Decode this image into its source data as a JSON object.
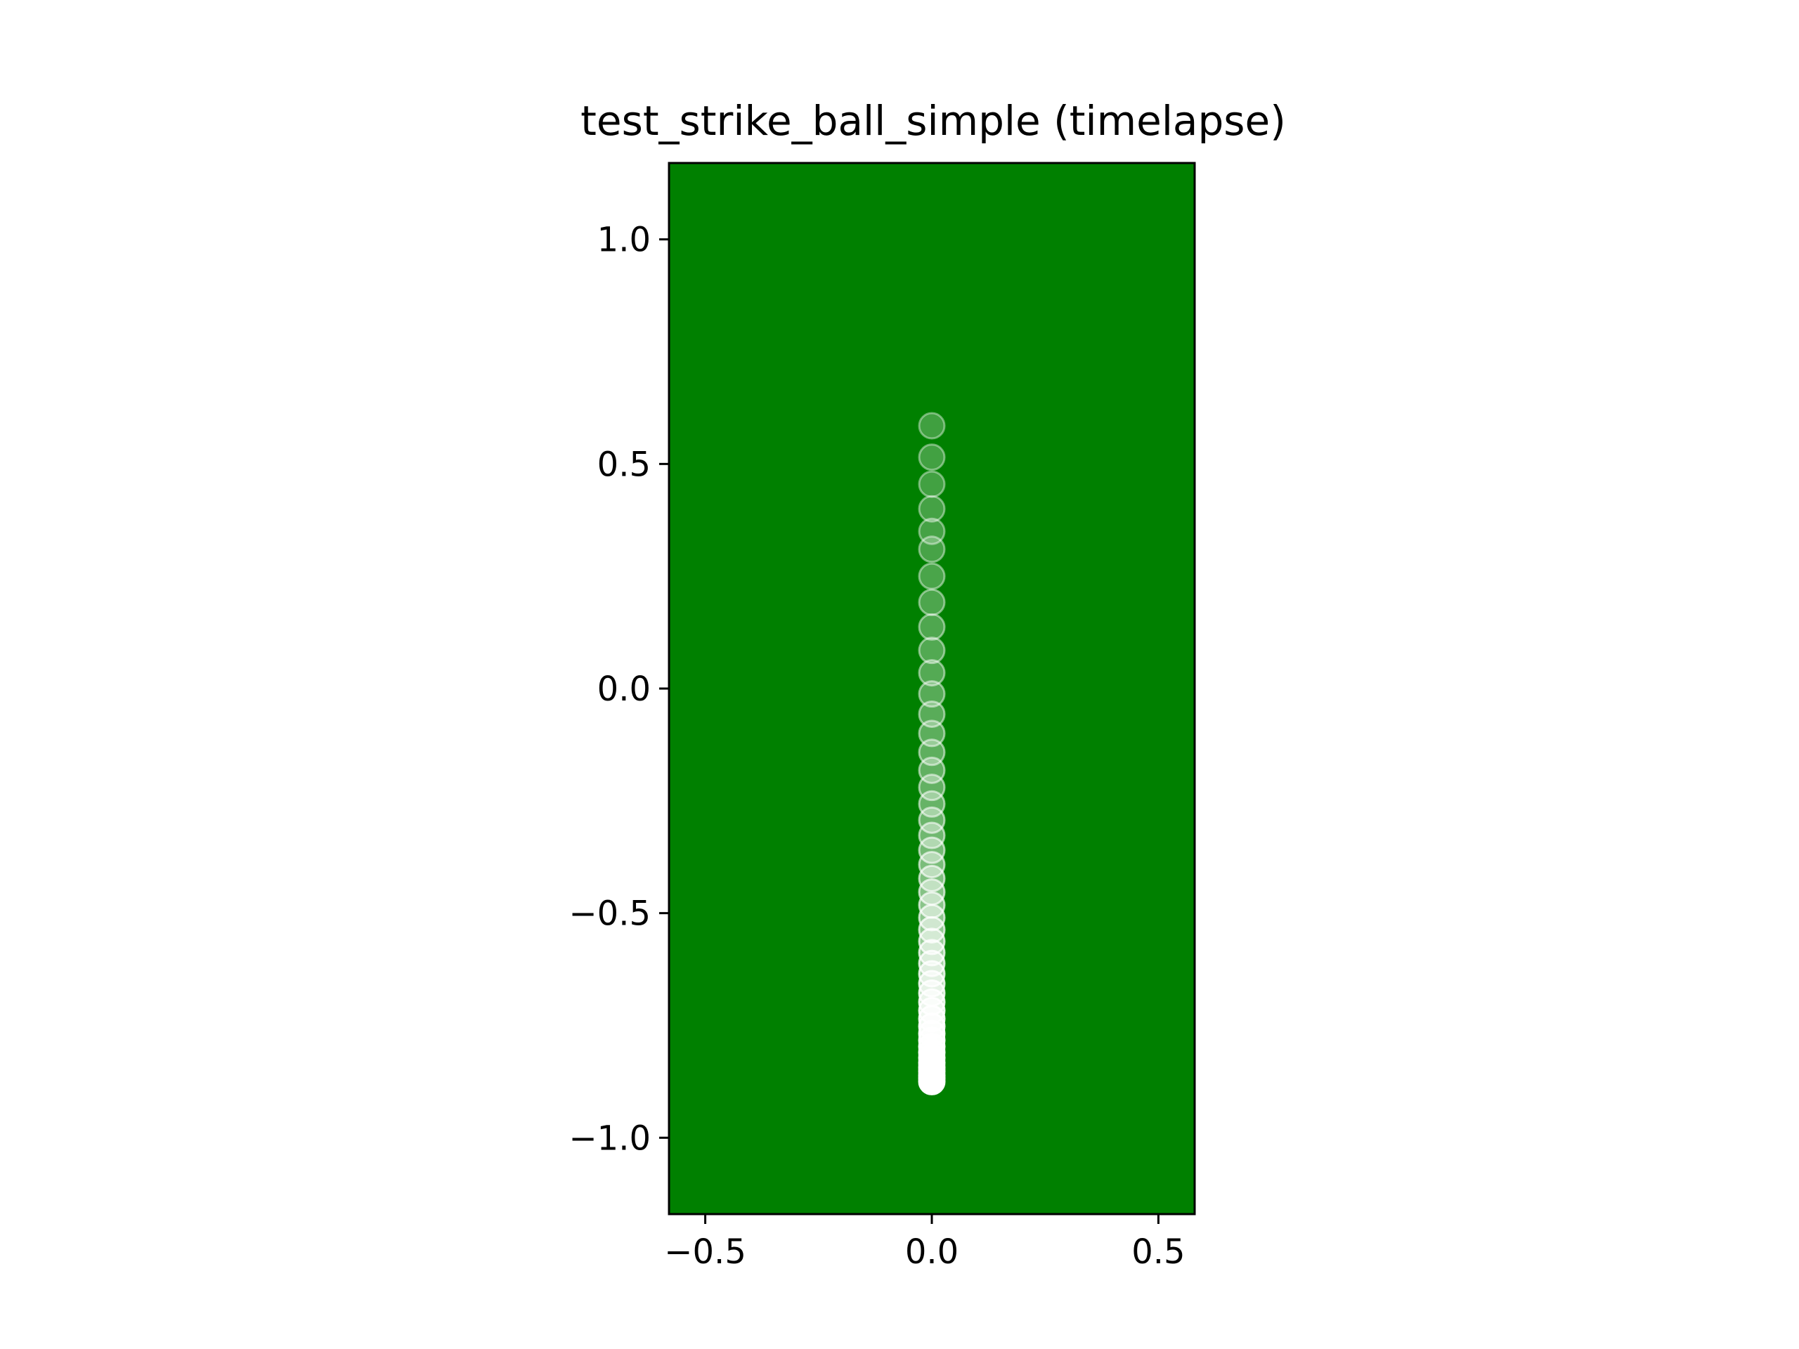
{
  "chart_data": {
    "type": "scatter",
    "title": "test_strike_ball_simple (timelapse)",
    "xlabel": "",
    "ylabel": "",
    "xlim": [
      -0.58,
      0.58
    ],
    "ylim": [
      -1.17,
      1.17
    ],
    "xticks": [
      {
        "value": -0.5,
        "label": "−0.5"
      },
      {
        "value": 0.0,
        "label": "0.0"
      },
      {
        "value": 0.5,
        "label": "0.5"
      }
    ],
    "yticks": [
      {
        "value": 1.0,
        "label": "1.0"
      },
      {
        "value": 0.5,
        "label": "0.5"
      },
      {
        "value": 0.0,
        "label": "0.0"
      },
      {
        "value": -0.5,
        "label": "−0.5"
      },
      {
        "value": -1.0,
        "label": "−1.0"
      }
    ],
    "grid": false,
    "background_color": "#008000",
    "marker_color": "#ffffff",
    "marker_edge_color": "#ffffff",
    "marker_size": 0.028,
    "series": [
      {
        "x": [
          0,
          0,
          0,
          0,
          0,
          0,
          0,
          0,
          0,
          0,
          0,
          0,
          0,
          0,
          0,
          0,
          0,
          0,
          0,
          0,
          0,
          0,
          0,
          0,
          0,
          0,
          0,
          0,
          0,
          0,
          0,
          0,
          0,
          0,
          0,
          0,
          0,
          0,
          0,
          0,
          0,
          0,
          0,
          0,
          0,
          0,
          0,
          0
        ],
        "y": [
          -0.875,
          -0.868,
          -0.861,
          -0.852,
          -0.843,
          -0.833,
          -0.822,
          -0.81,
          -0.797,
          -0.783,
          -0.768,
          -0.752,
          -0.735,
          -0.717,
          -0.698,
          -0.678,
          -0.657,
          -0.635,
          -0.612,
          -0.588,
          -0.563,
          -0.537,
          -0.51,
          -0.482,
          -0.453,
          -0.423,
          -0.392,
          -0.36,
          -0.327,
          -0.293,
          -0.257,
          -0.22,
          -0.182,
          -0.142,
          -0.1,
          -0.057,
          -0.012,
          0.035,
          0.085,
          0.137,
          0.192,
          0.25,
          0.31,
          0.35,
          0.4,
          0.455,
          0.515,
          0.585
        ],
        "opacity": [
          1.0,
          0.98,
          0.96,
          0.94,
          0.92,
          0.9,
          0.88,
          0.86,
          0.84,
          0.82,
          0.8,
          0.78,
          0.76,
          0.74,
          0.72,
          0.7,
          0.68,
          0.66,
          0.64,
          0.62,
          0.6,
          0.58,
          0.56,
          0.54,
          0.52,
          0.5,
          0.48,
          0.46,
          0.44,
          0.42,
          0.4,
          0.39,
          0.38,
          0.37,
          0.36,
          0.35,
          0.34,
          0.33,
          0.32,
          0.31,
          0.3,
          0.29,
          0.28,
          0.27,
          0.27,
          0.26,
          0.26,
          0.25
        ]
      }
    ]
  }
}
